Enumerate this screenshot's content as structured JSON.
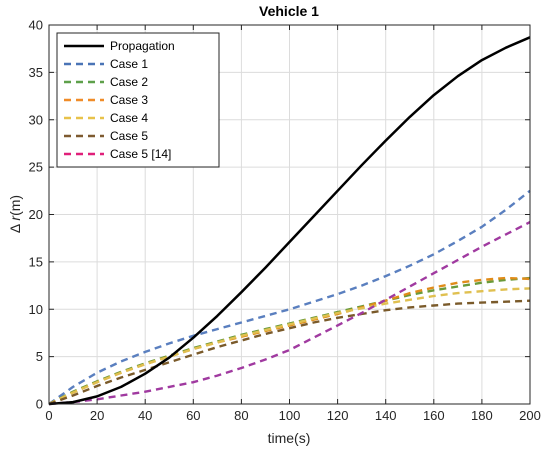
{
  "chart_data": {
    "type": "line",
    "title": "Vehicle 1",
    "xlabel": "time(s)",
    "ylabel_prefix": "Δ ",
    "ylabel_var": "r",
    "ylabel_suffix": "(m)",
    "xlim": [
      0,
      200
    ],
    "ylim": [
      0,
      40
    ],
    "xticks": [
      0,
      20,
      40,
      60,
      80,
      100,
      120,
      140,
      160,
      180,
      200
    ],
    "yticks": [
      0,
      5,
      10,
      15,
      20,
      25,
      30,
      35,
      40
    ],
    "grid": true,
    "legend_position": "top-left",
    "x": [
      0,
      10,
      20,
      30,
      40,
      50,
      60,
      70,
      80,
      90,
      100,
      110,
      120,
      130,
      140,
      150,
      160,
      170,
      180,
      190,
      200
    ],
    "series": [
      {
        "name": "Propagation",
        "color": "#000000",
        "style": "solid",
        "values": [
          0,
          0.2,
          0.8,
          1.8,
          3.2,
          4.9,
          7.0,
          9.3,
          11.8,
          14.4,
          17.1,
          19.8,
          22.5,
          25.2,
          27.8,
          30.3,
          32.6,
          34.6,
          36.3,
          37.6,
          38.7
        ]
      },
      {
        "name": "Case 1",
        "color": "#5a7fbf",
        "style": "dashed",
        "values": [
          0,
          1.8,
          3.3,
          4.5,
          5.5,
          6.4,
          7.2,
          7.9,
          8.6,
          9.3,
          10.0,
          10.8,
          11.6,
          12.5,
          13.5,
          14.6,
          15.8,
          17.2,
          18.7,
          20.5,
          22.5
        ]
      },
      {
        "name": "Case 2",
        "color": "#6a9a3a",
        "style": "dashed",
        "values": [
          0,
          1.3,
          2.4,
          3.4,
          4.3,
          5.1,
          5.9,
          6.6,
          7.3,
          7.9,
          8.5,
          9.1,
          9.7,
          10.3,
          10.9,
          11.5,
          12.0,
          12.4,
          12.8,
          13.1,
          13.3
        ]
      },
      {
        "name": "Case 3",
        "color": "#e08c1a",
        "style": "dashed",
        "values": [
          0,
          1.2,
          2.3,
          3.3,
          4.2,
          5.0,
          5.8,
          6.5,
          7.1,
          7.7,
          8.3,
          8.9,
          9.5,
          10.2,
          10.9,
          11.7,
          12.3,
          12.8,
          13.1,
          13.3,
          13.2
        ]
      },
      {
        "name": "Case 4",
        "color": "#e0c050",
        "style": "dashed",
        "values": [
          0,
          1.2,
          2.3,
          3.3,
          4.2,
          5.0,
          5.8,
          6.5,
          7.2,
          7.8,
          8.4,
          9.0,
          9.6,
          10.1,
          10.6,
          11.0,
          11.4,
          11.7,
          11.9,
          12.1,
          12.2
        ]
      },
      {
        "name": "Case 5",
        "color": "#7a5a2a",
        "style": "dashed",
        "values": [
          0,
          0.9,
          1.9,
          2.8,
          3.6,
          4.4,
          5.2,
          6.0,
          6.7,
          7.4,
          8.0,
          8.6,
          9.1,
          9.5,
          9.9,
          10.2,
          10.4,
          10.6,
          10.7,
          10.8,
          10.9
        ]
      },
      {
        "name": "Case 5 [14]",
        "color": "#a03aa0",
        "style": "dashed",
        "values": [
          0,
          0.2,
          0.5,
          0.9,
          1.3,
          1.8,
          2.3,
          3.0,
          3.8,
          4.7,
          5.7,
          7.0,
          8.3,
          9.6,
          11.0,
          12.4,
          13.8,
          15.2,
          16.6,
          17.9,
          19.2
        ]
      }
    ],
    "legend_colors": [
      "#000000",
      "#4a74b6",
      "#5ea04a",
      "#f08c28",
      "#e8c24a",
      "#7e5a30",
      "#e0207a"
    ]
  }
}
